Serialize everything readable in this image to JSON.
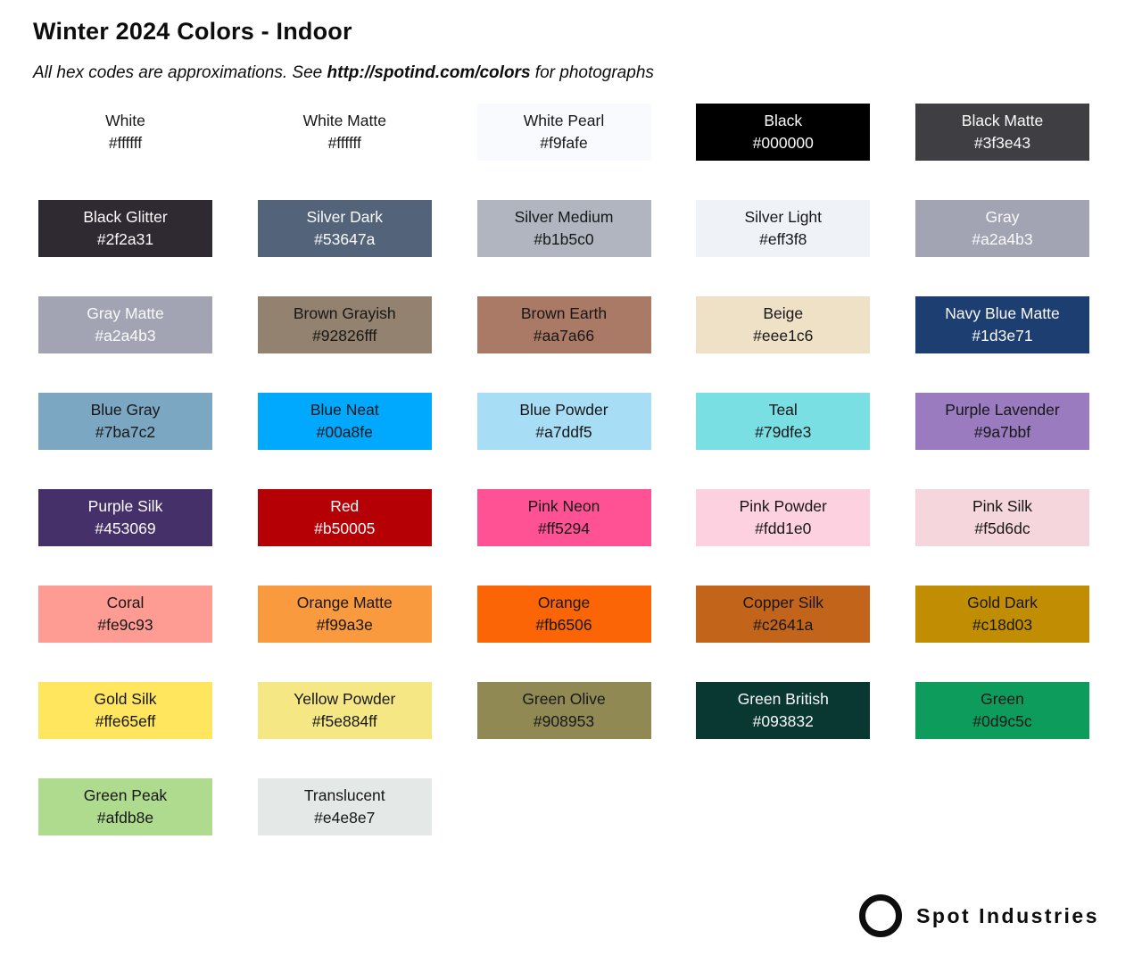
{
  "header": {
    "title": "Winter 2024 Colors - Indoor",
    "subtitle_prefix": "All hex codes are approximations. See ",
    "subtitle_link": "http://spotind.com/colors",
    "subtitle_suffix": " for photographs"
  },
  "palette": {
    "columns": 5,
    "swatches": [
      {
        "name": "White",
        "hex": "#ffffff",
        "text": "dark",
        "texture": "none"
      },
      {
        "name": "White Matte",
        "hex": "#ffffff",
        "text": "dark",
        "texture": "none"
      },
      {
        "name": "White Pearl",
        "hex": "#f9fafe",
        "text": "dark",
        "texture": "none"
      },
      {
        "name": "Black",
        "hex": "#000000",
        "text": "light",
        "texture": "none"
      },
      {
        "name": "Black Matte",
        "hex": "#3f3e43",
        "text": "light",
        "texture": "none"
      },
      {
        "name": "Black Glitter",
        "hex": "#2f2a31",
        "text": "light",
        "texture": "glitter"
      },
      {
        "name": "Silver Dark",
        "hex": "#53647a",
        "text": "light",
        "texture": "none"
      },
      {
        "name": "Silver Medium",
        "hex": "#b1b5c0",
        "text": "dark",
        "texture": "none"
      },
      {
        "name": "Silver Light",
        "hex": "#eff3f8",
        "text": "dark",
        "texture": "none"
      },
      {
        "name": "Gray",
        "hex": "#a2a4b3",
        "text": "light",
        "texture": "none"
      },
      {
        "name": "Gray Matte",
        "hex": "#a2a4b3",
        "text": "light",
        "texture": "none"
      },
      {
        "name": "Brown Grayish",
        "hex": "#92826fff",
        "text": "dark",
        "texture": "none"
      },
      {
        "name": "Brown Earth",
        "hex": "#aa7a66",
        "text": "dark",
        "texture": "none"
      },
      {
        "name": "Beige",
        "hex": "#eee1c6",
        "text": "dark",
        "texture": "none"
      },
      {
        "name": "Navy Blue Matte",
        "hex": "#1d3e71",
        "text": "light",
        "texture": "none"
      },
      {
        "name": "Blue Gray",
        "hex": "#7ba7c2",
        "text": "dark",
        "texture": "none"
      },
      {
        "name": "Blue Neat",
        "hex": "#00a8fe",
        "text": "dark",
        "texture": "none"
      },
      {
        "name": "Blue Powder",
        "hex": "#a7ddf5",
        "text": "dark",
        "texture": "none"
      },
      {
        "name": "Teal",
        "hex": "#79dfe3",
        "text": "dark",
        "texture": "none"
      },
      {
        "name": "Purple Lavender",
        "hex": "#9a7bbf",
        "text": "dark",
        "texture": "none"
      },
      {
        "name": "Purple Silk",
        "hex": "#453069",
        "text": "light",
        "texture": "none"
      },
      {
        "name": "Red",
        "hex": "#b50005",
        "text": "light",
        "texture": "none"
      },
      {
        "name": "Pink Neon",
        "hex": "#ff5294",
        "text": "dark",
        "texture": "none"
      },
      {
        "name": "Pink Powder",
        "hex": "#fdd1e0",
        "text": "dark",
        "texture": "none"
      },
      {
        "name": "Pink Silk",
        "hex": "#f5d6dc",
        "text": "dark",
        "texture": "none"
      },
      {
        "name": "Coral",
        "hex": "#fe9c93",
        "text": "dark",
        "texture": "none"
      },
      {
        "name": "Orange Matte",
        "hex": "#f99a3e",
        "text": "dark",
        "texture": "none"
      },
      {
        "name": "Orange",
        "hex": "#fb6506",
        "text": "dark",
        "texture": "none"
      },
      {
        "name": "Copper Silk",
        "hex": "#c2641a",
        "text": "dark",
        "texture": "none"
      },
      {
        "name": "Gold Dark",
        "hex": "#c18d03",
        "text": "dark",
        "texture": "none"
      },
      {
        "name": "Gold Silk",
        "hex": "#ffe65eff",
        "text": "dark",
        "texture": "none"
      },
      {
        "name": "Yellow Powder",
        "hex": "#f5e884ff",
        "text": "dark",
        "texture": "none"
      },
      {
        "name": "Green Olive",
        "hex": "#908953",
        "text": "dark",
        "texture": "none"
      },
      {
        "name": "Green British",
        "hex": "#093832",
        "text": "light",
        "texture": "none"
      },
      {
        "name": "Green",
        "hex": "#0d9c5c",
        "text": "dark",
        "texture": "none"
      },
      {
        "name": "Green Peak",
        "hex": "#afdb8e",
        "text": "dark",
        "texture": "none"
      },
      {
        "name": "Translucent",
        "hex": "#e4e8e7",
        "text": "dark",
        "texture": "none"
      }
    ]
  },
  "footer": {
    "brand": "Spot Industries",
    "logo_icon": "ring-icon",
    "brand_color": "#0d0d0d"
  }
}
